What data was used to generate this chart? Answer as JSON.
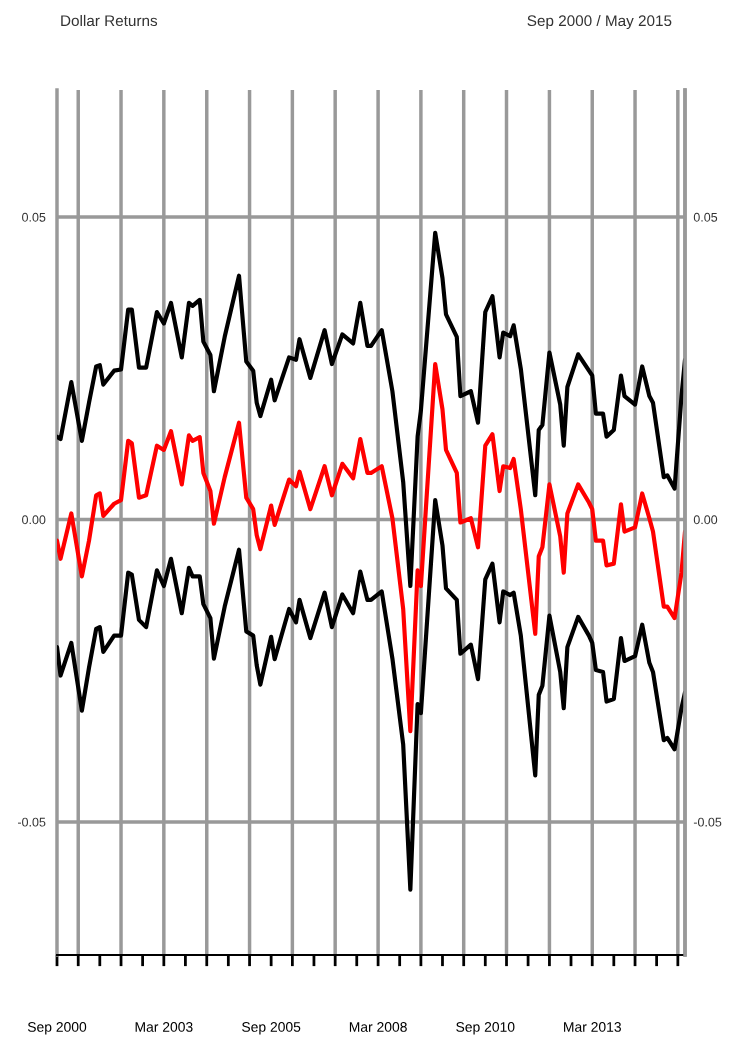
{
  "chart_data": {
    "type": "line",
    "title": "Dollar Returns",
    "subtitle": "Sep 2000 / May 2015",
    "x": [
      "2000-09",
      "2000-10",
      "2001-01",
      "2001-04",
      "2001-06",
      "2001-08",
      "2001-09",
      "2001-10",
      "2002-01",
      "2002-03",
      "2002-05",
      "2002-06",
      "2002-08",
      "2002-10",
      "2003-01",
      "2003-03",
      "2003-05",
      "2003-08",
      "2003-10",
      "2003-11",
      "2004-01",
      "2004-02",
      "2004-04",
      "2004-05",
      "2004-08",
      "2004-12",
      "2005-02",
      "2005-04",
      "2005-05",
      "2005-06",
      "2005-09",
      "2005-10",
      "2006-02",
      "2006-04",
      "2006-05",
      "2006-08",
      "2006-12",
      "2007-02",
      "2007-05",
      "2007-08",
      "2007-10",
      "2007-12",
      "2008-01",
      "2008-04",
      "2008-07",
      "2008-10",
      "2008-12",
      "2009-02",
      "2009-03",
      "2009-07",
      "2009-09",
      "2009-10",
      "2010-01",
      "2010-02",
      "2010-05",
      "2010-07",
      "2010-09",
      "2010-11",
      "2011-01",
      "2011-02",
      "2011-04",
      "2011-05",
      "2011-07",
      "2011-11",
      "2011-12",
      "2012-01",
      "2012-03",
      "2012-06",
      "2012-07",
      "2012-08",
      "2012-11",
      "2013-02",
      "2013-03",
      "2013-04",
      "2013-06",
      "2013-07",
      "2013-09",
      "2013-11",
      "2013-12",
      "2014-03",
      "2014-05",
      "2014-07",
      "2014-08",
      "2014-11",
      "2014-12",
      "2015-02",
      "2015-04",
      "2015-05"
    ],
    "series": [
      {
        "color": "#000000",
        "values": [
          0.0137,
          0.0133,
          0.0227,
          0.013,
          0.0193,
          0.0253,
          0.0255,
          0.0223,
          0.0246,
          0.0248,
          0.0347,
          0.0347,
          0.0251,
          0.0251,
          0.0343,
          0.0324,
          0.0358,
          0.0268,
          0.0358,
          0.0353,
          0.0363,
          0.0294,
          0.0272,
          0.0212,
          0.0302,
          0.0403,
          0.0261,
          0.0246,
          0.0193,
          0.0171,
          0.0231,
          0.0197,
          0.0268,
          0.0264,
          0.0298,
          0.0234,
          0.0313,
          0.0257,
          0.0306,
          0.0291,
          0.0358,
          0.0287,
          0.0287,
          0.0313,
          0.0212,
          0.0062,
          -0.011,
          0.0137,
          0.018,
          0.0474,
          0.0399,
          0.0339,
          0.0302,
          0.0204,
          0.0212,
          0.016,
          0.0343,
          0.0369,
          0.0268,
          0.0309,
          0.0303,
          0.0321,
          0.0249,
          0.004,
          0.0148,
          0.0156,
          0.0276,
          0.019,
          0.0122,
          0.0219,
          0.0273,
          0.0246,
          0.0238,
          0.0175,
          0.0175,
          0.0137,
          0.0148,
          0.0238,
          0.0204,
          0.019,
          0.0253,
          0.0204,
          0.0193,
          0.007,
          0.0073,
          0.0051,
          0.0204,
          0.0264
        ]
      },
      {
        "color": "#ff0000",
        "values": [
          -0.0035,
          -0.0065,
          0.001,
          -0.0094,
          -0.0035,
          0.004,
          0.0043,
          0.0006,
          0.0026,
          0.0032,
          0.013,
          0.0126,
          0.0036,
          0.004,
          0.0122,
          0.0115,
          0.0146,
          0.0058,
          0.0139,
          0.013,
          0.0136,
          0.0077,
          0.0047,
          -0.0007,
          0.007,
          0.016,
          0.0036,
          0.0017,
          -0.0026,
          -0.0049,
          0.0023,
          -0.0009,
          0.0066,
          0.0055,
          0.0079,
          0.0017,
          0.0088,
          0.004,
          0.0092,
          0.0068,
          0.0133,
          0.0077,
          0.0077,
          0.0088,
          0.0002,
          -0.0148,
          -0.035,
          -0.0084,
          -0.011,
          0.0257,
          0.0182,
          0.0115,
          0.0077,
          -0.0005,
          0.0002,
          -0.0046,
          0.0122,
          0.0141,
          0.0047,
          0.0088,
          0.0085,
          0.01,
          0.0017,
          -0.0189,
          -0.0061,
          -0.0046,
          0.0058,
          -0.0028,
          -0.0088,
          0.001,
          0.0058,
          0.0028,
          0.0017,
          -0.0035,
          -0.0035,
          -0.0076,
          -0.0073,
          0.0025,
          -0.002,
          -0.0013,
          0.0043,
          0.0002,
          -0.002,
          -0.0144,
          -0.0144,
          -0.0163,
          -0.0088,
          -0.002
        ]
      },
      {
        "color": "#000000",
        "values": [
          -0.0211,
          -0.0258,
          -0.0204,
          -0.0316,
          -0.0245,
          -0.0181,
          -0.0178,
          -0.0219,
          -0.0192,
          -0.0192,
          -0.0088,
          -0.0091,
          -0.0166,
          -0.0178,
          -0.0084,
          -0.011,
          -0.0065,
          -0.0155,
          -0.008,
          -0.0094,
          -0.0094,
          -0.014,
          -0.0163,
          -0.023,
          -0.0144,
          -0.005,
          -0.0185,
          -0.0192,
          -0.0241,
          -0.0273,
          -0.0194,
          -0.0231,
          -0.0148,
          -0.017,
          -0.0133,
          -0.0196,
          -0.0121,
          -0.0178,
          -0.0124,
          -0.0155,
          -0.0086,
          -0.0133,
          -0.0133,
          -0.0119,
          -0.023,
          -0.0372,
          -0.0612,
          -0.0305,
          -0.032,
          0.0032,
          -0.0043,
          -0.0114,
          -0.0133,
          -0.0222,
          -0.0207,
          -0.0264,
          -0.0099,
          -0.0073,
          -0.017,
          -0.0119,
          -0.0125,
          -0.0121,
          -0.0192,
          -0.0423,
          -0.029,
          -0.0275,
          -0.0159,
          -0.0252,
          -0.0312,
          -0.0211,
          -0.0161,
          -0.0192,
          -0.0204,
          -0.0249,
          -0.0252,
          -0.0301,
          -0.0297,
          -0.0196,
          -0.0234,
          -0.0226,
          -0.0174,
          -0.0237,
          -0.0252,
          -0.0365,
          -0.0361,
          -0.038,
          -0.0312,
          -0.0286
        ]
      }
    ],
    "xlim": [
      "2000-09",
      "2015-05"
    ],
    "xticks": [
      {
        "value": "2000-09",
        "label": "Sep 2000"
      },
      {
        "value": "2001-03",
        "label": null
      },
      {
        "value": "2001-09",
        "label": null
      },
      {
        "value": "2002-03",
        "label": null
      },
      {
        "value": "2002-09",
        "label": null
      },
      {
        "value": "2003-03",
        "label": "Mar 2003"
      },
      {
        "value": "2003-09",
        "label": null
      },
      {
        "value": "2004-03",
        "label": null
      },
      {
        "value": "2004-09",
        "label": null
      },
      {
        "value": "2005-03",
        "label": null
      },
      {
        "value": "2005-09",
        "label": "Sep 2005"
      },
      {
        "value": "2006-03",
        "label": null
      },
      {
        "value": "2006-09",
        "label": null
      },
      {
        "value": "2007-03",
        "label": null
      },
      {
        "value": "2007-09",
        "label": null
      },
      {
        "value": "2008-03",
        "label": "Mar 2008"
      },
      {
        "value": "2008-09",
        "label": null
      },
      {
        "value": "2009-03",
        "label": null
      },
      {
        "value": "2009-09",
        "label": null
      },
      {
        "value": "2010-03",
        "label": null
      },
      {
        "value": "2010-09",
        "label": "Sep 2010"
      },
      {
        "value": "2011-03",
        "label": null
      },
      {
        "value": "2011-09",
        "label": null
      },
      {
        "value": "2012-03",
        "label": null
      },
      {
        "value": "2012-09",
        "label": null
      },
      {
        "value": "2013-03",
        "label": "Mar 2013"
      },
      {
        "value": "2013-09",
        "label": null
      },
      {
        "value": "2014-03",
        "label": null
      },
      {
        "value": "2014-09",
        "label": null
      },
      {
        "value": "2015-03",
        "label": null
      }
    ],
    "ylim": [
      -0.072,
      0.071
    ],
    "yticks": [
      {
        "value": -0.05,
        "label": "-0.05"
      },
      {
        "value": 0,
        "label": "0.00"
      },
      {
        "value": 0.05,
        "label": "0.05"
      }
    ],
    "y2lim": [
      -0.072,
      0.071
    ],
    "y2ticks": [
      {
        "value": -0.05,
        "label": "-0.05"
      },
      {
        "value": 0,
        "label": "0.00"
      },
      {
        "value": 0.05,
        "label": "0.05"
      }
    ],
    "grid": "y",
    "ref_lines": [
      {
        "axis": "x",
        "value": "2001-03",
        "color": "#999999"
      },
      {
        "axis": "x",
        "value": "2002-03",
        "color": "#999999"
      },
      {
        "axis": "x",
        "value": "2003-03",
        "color": "#999999"
      },
      {
        "axis": "x",
        "value": "2004-03",
        "color": "#999999"
      },
      {
        "axis": "x",
        "value": "2005-03",
        "color": "#999999"
      },
      {
        "axis": "x",
        "value": "2006-03",
        "color": "#999999"
      },
      {
        "axis": "x",
        "value": "2007-03",
        "color": "#999999"
      },
      {
        "axis": "x",
        "value": "2008-03",
        "color": "#999999"
      },
      {
        "axis": "x",
        "value": "2009-03",
        "color": "#999999"
      },
      {
        "axis": "x",
        "value": "2010-03",
        "color": "#999999"
      },
      {
        "axis": "x",
        "value": "2011-03",
        "color": "#999999"
      },
      {
        "axis": "x",
        "value": "2012-03",
        "color": "#999999"
      },
      {
        "axis": "x",
        "value": "2013-03",
        "color": "#999999"
      },
      {
        "axis": "x",
        "value": "2014-03",
        "color": "#999999"
      },
      {
        "axis": "x",
        "value": "2015-03",
        "color": "#999999"
      }
    ],
    "line_style": "solid"
  }
}
